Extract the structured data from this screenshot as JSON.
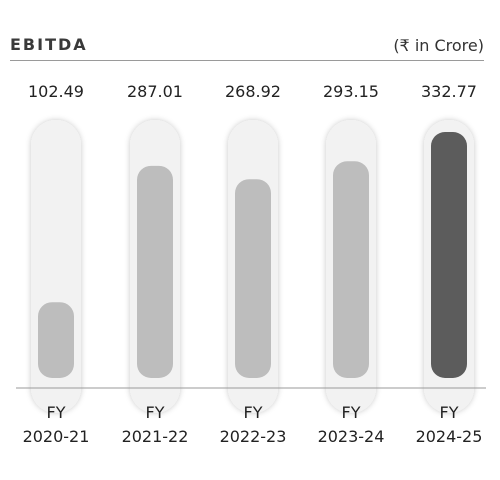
{
  "header": {
    "title": "EBITDA",
    "unit": "(₹ in Crore)"
  },
  "chart_data": {
    "type": "bar",
    "title": "EBITDA",
    "unit": "(₹ in Crore)",
    "categories": [
      [
        "FY",
        "2020-21"
      ],
      [
        "FY",
        "2021-22"
      ],
      [
        "FY",
        "2022-23"
      ],
      [
        "FY",
        "2023-24"
      ],
      [
        "FY",
        "2024-25"
      ]
    ],
    "values": [
      102.49,
      287.01,
      268.92,
      293.15,
      332.77
    ],
    "value_labels": [
      "102.49",
      "287.01",
      "268.92",
      "293.15",
      "332.77"
    ],
    "ylim": [
      0,
      332.77
    ],
    "grid": false,
    "colors": {
      "bar": "#bdbdbd",
      "highlight_bar": "#5c5c5c",
      "track": "#f2f2f2",
      "baseline": "#9a9a9a"
    },
    "highlight_index": 4
  }
}
